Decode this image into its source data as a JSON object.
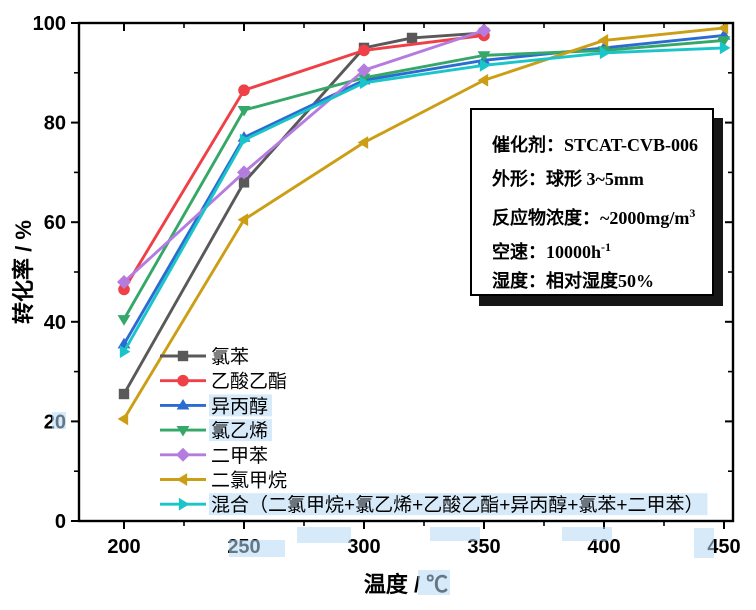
{
  "chart_data": {
    "type": "line",
    "title": "",
    "xlabel": "温度 / ℃",
    "ylabel": "转化率 / %",
    "xlim": [
      181.25,
      453.75
    ],
    "ylim": [
      0,
      100
    ],
    "x_ticks": [
      200,
      250,
      300,
      350,
      400,
      450
    ],
    "x_minor_step": 25,
    "y_ticks": [
      0,
      20,
      40,
      60,
      80,
      100
    ],
    "y_minor_step": 10,
    "grid": false,
    "legend_position": "inside-bottom-left",
    "series": [
      {
        "key": "chlorobenzene",
        "name": "氯苯",
        "color": "#595959",
        "marker": "square",
        "points": [
          [
            200,
            25.5
          ],
          [
            250,
            68
          ],
          [
            300,
            95
          ],
          [
            320,
            97
          ],
          [
            350,
            98
          ]
        ],
        "highlighted": false
      },
      {
        "key": "ethyl-acetate",
        "name": "乙酸乙酯",
        "color": "#ee4046",
        "marker": "circle",
        "points": [
          [
            200,
            46.5
          ],
          [
            250,
            86.5
          ],
          [
            300,
            94.5
          ],
          [
            350,
            97.5
          ]
        ],
        "highlighted": false
      },
      {
        "key": "isopropanol",
        "name": "异丙醇",
        "color": "#2c6bd1",
        "marker": "triangle-up",
        "points": [
          [
            200,
            35.5
          ],
          [
            250,
            77
          ],
          [
            300,
            88.5
          ],
          [
            350,
            92.5
          ],
          [
            400,
            95
          ],
          [
            450,
            97.5
          ]
        ],
        "highlighted": true
      },
      {
        "key": "vinyl-chloride",
        "name": "氯乙烯",
        "color": "#35a768",
        "marker": "triangle-down",
        "points": [
          [
            200,
            40.5
          ],
          [
            250,
            82.5
          ],
          [
            300,
            89
          ],
          [
            350,
            93.5
          ],
          [
            400,
            94.5
          ],
          [
            450,
            96.5
          ]
        ],
        "highlighted": true
      },
      {
        "key": "xylene",
        "name": "二甲苯",
        "color": "#b57ce0",
        "marker": "diamond",
        "points": [
          [
            200,
            48
          ],
          [
            250,
            70
          ],
          [
            300,
            90.5
          ],
          [
            350,
            98.5
          ]
        ],
        "highlighted": false
      },
      {
        "key": "dichloromethane",
        "name": "二氯甲烷",
        "color": "#cc9e15",
        "marker": "triangle-left",
        "points": [
          [
            200,
            20.5
          ],
          [
            250,
            60.5
          ],
          [
            300,
            76
          ],
          [
            350,
            88.5
          ],
          [
            400,
            96.5
          ],
          [
            450,
            99
          ]
        ],
        "highlighted": false
      },
      {
        "key": "voc-mixture",
        "name": "混合（二氯甲烷+氯乙烯+乙酸乙酯+异丙醇+氯苯+二甲苯）",
        "color": "#19c5c9",
        "marker": "triangle-right",
        "points": [
          [
            200,
            34
          ],
          [
            250,
            76.5
          ],
          [
            300,
            88
          ],
          [
            350,
            91.5
          ],
          [
            400,
            94
          ],
          [
            450,
            95
          ]
        ],
        "highlighted": true
      }
    ]
  },
  "info_box": {
    "lines": [
      {
        "text": "催化剂：STCAT-CVB-006",
        "sup": ""
      },
      {
        "text": "外形：球形 3~5mm",
        "sup": ""
      },
      {
        "text": "反应物浓度：~2000mg/m",
        "sup": "3"
      },
      {
        "text": "空速：10000h",
        "sup": "-1"
      },
      {
        "text": "湿度：相对湿度50%",
        "sup": ""
      }
    ]
  },
  "colors": {
    "frame": "#000000",
    "background": "#ffffff",
    "selection_highlight": "#b6d8f6"
  }
}
